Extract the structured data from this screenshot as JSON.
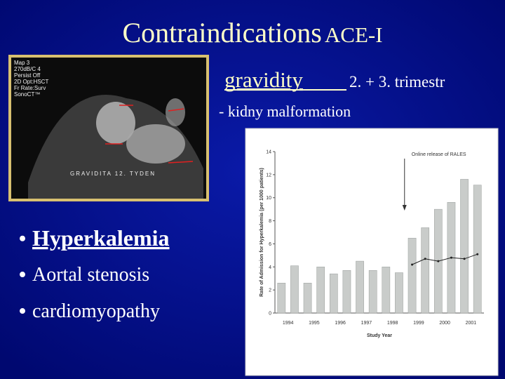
{
  "title": {
    "main": "Contraindications",
    "suffix": "ACE-I"
  },
  "gravidity": {
    "label": "gravidity",
    "detail": "2. + 3. trimestr",
    "note": "- kidny malformation"
  },
  "ultrasound": {
    "settings": [
      "Map 3",
      "270dB/C 4",
      "Persist Off",
      "2D Opt:HSCT",
      "Fr Rate:Surv",
      "SonoCT™"
    ],
    "caption": "GRAVIDITA 12. TYDEN"
  },
  "bullets": [
    "Hyperkalemia",
    "Aortal stenosis",
    "cardiomyopathy"
  ],
  "chart_data": {
    "type": "bar",
    "y_label": "Rate of Admission for Hyperkalemia (per 1000 patients)",
    "x_label": "Study Year",
    "annotation": "Online release of RALES",
    "categories": [
      "1994",
      null,
      "1995",
      null,
      "1996",
      null,
      "1997",
      null,
      "1998",
      null,
      "1999",
      null,
      "2000",
      null,
      "2001",
      null
    ],
    "series": [
      {
        "type": "bar",
        "color": "#c9ccca",
        "values": [
          2.6,
          4.1,
          2.6,
          4.0,
          3.4,
          3.7,
          4.5,
          3.7,
          4.0,
          3.5,
          6.5,
          7.4,
          9.0,
          9.6,
          11.6,
          11.1
        ]
      },
      {
        "type": "line",
        "color": "#222222",
        "values": [
          null,
          null,
          null,
          null,
          null,
          null,
          null,
          null,
          null,
          null,
          4.2,
          4.7,
          4.5,
          4.8,
          4.7,
          5.1
        ]
      }
    ],
    "ylim": [
      0,
      14
    ],
    "yticks": [
      0,
      2,
      4,
      6,
      8,
      10,
      12,
      14
    ]
  }
}
